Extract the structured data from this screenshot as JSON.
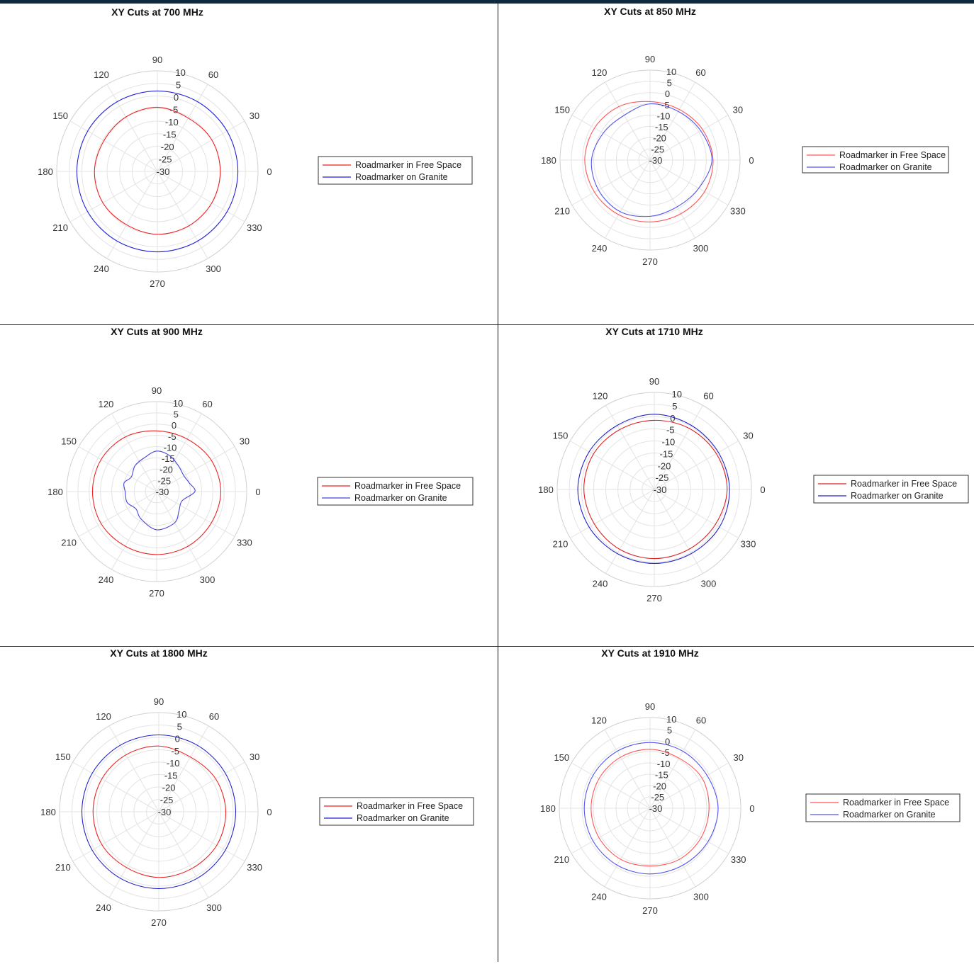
{
  "colors": {
    "free_space": "#ff3333",
    "granite": "#3333ee",
    "grid": "#e3e3e3",
    "axis_text": "#333333"
  },
  "chart_data": [
    {
      "type": "polar",
      "title": "XY Cuts at 700 MHz",
      "r_ticks": [
        "10",
        "5",
        "0",
        "-5",
        "-10",
        "-15",
        "-20",
        "-25",
        "-30"
      ],
      "r_range": [
        -30,
        10
      ],
      "theta_ticks": [
        "0",
        "30",
        "60",
        "90",
        "120",
        "150",
        "180",
        "210",
        "240",
        "270",
        "300",
        "330"
      ],
      "legend_placement": "right",
      "series": [
        {
          "name": "Roadmarker in Free Space",
          "color": "#ee2222",
          "theta": [
            0,
            30,
            60,
            90,
            120,
            150,
            180,
            210,
            240,
            270,
            300,
            330
          ],
          "r": [
            -5,
            -5,
            -5.5,
            -4.5,
            -5,
            -5.5,
            -5,
            -5,
            -5.5,
            -5,
            -5,
            -5
          ]
        },
        {
          "name": "Roadmarker on Granite",
          "color": "#2222dd",
          "theta": [
            0,
            30,
            60,
            90,
            120,
            150,
            180,
            210,
            240,
            270,
            300,
            330
          ],
          "r": [
            2,
            2,
            2,
            2,
            2,
            2,
            2,
            2,
            2,
            2,
            2,
            2
          ]
        }
      ]
    },
    {
      "type": "polar",
      "title": "XY Cuts at 850 MHz",
      "r_ticks": [
        "10",
        "5",
        "0",
        "-5",
        "-10",
        "-15",
        "-20",
        "-25",
        "-30"
      ],
      "r_range": [
        -30,
        10
      ],
      "theta_ticks": [
        "0",
        "30",
        "60",
        "90",
        "120",
        "150",
        "180",
        "210",
        "240",
        "270",
        "300",
        "330"
      ],
      "legend_placement": "right",
      "series": [
        {
          "name": "Roadmarker in Free Space",
          "color": "#ff5555",
          "theta": [
            0,
            30,
            60,
            90,
            120,
            150,
            180,
            210,
            240,
            270,
            300,
            330
          ],
          "r": [
            -2,
            -3,
            -4,
            -4,
            -2.5,
            -1.5,
            -1,
            -1.5,
            -2,
            -2.5,
            -2.5,
            -2
          ]
        },
        {
          "name": "Roadmarker on Granite",
          "color": "#5555ee",
          "theta": [
            0,
            30,
            60,
            90,
            120,
            150,
            180,
            210,
            240,
            270,
            300,
            330
          ],
          "r": [
            -2.5,
            -4,
            -5,
            -5,
            -7,
            -6,
            -4,
            -3.5,
            -3.5,
            -5,
            -6,
            -5
          ]
        }
      ]
    },
    {
      "type": "polar",
      "title": "XY Cuts at 900 MHz",
      "r_ticks": [
        "10",
        "5",
        "0",
        "-5",
        "-10",
        "-15",
        "-20",
        "-25",
        "-30"
      ],
      "r_range": [
        -30,
        10
      ],
      "theta_ticks": [
        "0",
        "30",
        "60",
        "90",
        "120",
        "150",
        "180",
        "210",
        "240",
        "270",
        "300",
        "330"
      ],
      "legend_placement": "right",
      "series": [
        {
          "name": "Roadmarker in Free Space",
          "color": "#ee2222",
          "theta": [
            0,
            30,
            60,
            90,
            120,
            150,
            180,
            210,
            240,
            270,
            300,
            330
          ],
          "r": [
            -1.5,
            -2,
            -3,
            -3,
            -2,
            -1.5,
            -1.5,
            -1.5,
            -2,
            -2,
            -2,
            -2
          ]
        },
        {
          "name": "Roadmarker on Granite",
          "color": "#4444dd",
          "theta": [
            0,
            15,
            30,
            50,
            70,
            90,
            110,
            130,
            150,
            165,
            180,
            200,
            220,
            240,
            270,
            300,
            320,
            340
          ],
          "r": [
            -13,
            -15,
            -16,
            -15,
            -13,
            -12,
            -14,
            -15,
            -17,
            -15,
            -16,
            -16,
            -18,
            -16,
            -13,
            -14,
            -17,
            -18
          ]
        }
      ]
    },
    {
      "type": "polar",
      "title": "XY Cuts at 1710 MHz",
      "r_ticks": [
        "10",
        "5",
        "0",
        "-5",
        "-10",
        "-15",
        "-20",
        "-25",
        "-30"
      ],
      "r_range": [
        -30,
        10
      ],
      "theta_ticks": [
        "0",
        "30",
        "60",
        "90",
        "120",
        "150",
        "180",
        "210",
        "240",
        "270",
        "300",
        "330"
      ],
      "legend_placement": "right",
      "series": [
        {
          "name": "Roadmarker in Free Space",
          "color": "#dd2222",
          "theta": [
            0,
            30,
            60,
            90,
            120,
            150,
            180,
            210,
            240,
            270,
            300,
            330
          ],
          "r": [
            0,
            -0.5,
            -1,
            -1.5,
            -1.5,
            -1,
            -1,
            -1.5,
            -1.5,
            -1.5,
            -1.5,
            -1
          ]
        },
        {
          "name": "Roadmarker on Granite",
          "color": "#2222cc",
          "theta": [
            0,
            30,
            60,
            90,
            120,
            150,
            180,
            210,
            240,
            270,
            300,
            330
          ],
          "r": [
            1,
            0.5,
            0.5,
            1,
            0.5,
            1,
            1.5,
            1,
            0.5,
            0.5,
            0.5,
            1
          ]
        }
      ]
    },
    {
      "type": "polar",
      "title": "XY Cuts at 1800 MHz",
      "r_ticks": [
        "10",
        "5",
        "0",
        "-5",
        "-10",
        "-15",
        "-20",
        "-25",
        "-30"
      ],
      "r_range": [
        -30,
        10
      ],
      "theta_ticks": [
        "0",
        "30",
        "60",
        "90",
        "120",
        "150",
        "180",
        "210",
        "240",
        "270",
        "300",
        "330"
      ],
      "legend_placement": "right",
      "series": [
        {
          "name": "Roadmarker in Free Space",
          "color": "#ee2222",
          "theta": [
            0,
            30,
            60,
            90,
            120,
            150,
            180,
            210,
            240,
            270,
            300,
            330
          ],
          "r": [
            -3,
            -3.5,
            -4.5,
            -3.5,
            -3.5,
            -3.5,
            -3.5,
            -3.5,
            -4,
            -3.5,
            -3.5,
            -3
          ]
        },
        {
          "name": "Roadmarker on Granite",
          "color": "#2222cc",
          "theta": [
            0,
            30,
            60,
            90,
            120,
            150,
            180,
            210,
            240,
            270,
            300,
            330
          ],
          "r": [
            1,
            1,
            1,
            1,
            1,
            1,
            1,
            1,
            1,
            1,
            1,
            1
          ]
        }
      ]
    },
    {
      "type": "polar",
      "title": "XY Cuts at 1910 MHz",
      "r_ticks": [
        "10",
        "5",
        "0",
        "-5",
        "-10",
        "-15",
        "-20",
        "-25",
        "-30"
      ],
      "r_range": [
        -30,
        10
      ],
      "theta_ticks": [
        "0",
        "30",
        "60",
        "90",
        "120",
        "150",
        "180",
        "210",
        "240",
        "270",
        "300",
        "330"
      ],
      "legend_placement": "right",
      "series": [
        {
          "name": "Roadmarker in Free Space",
          "color": "#ff5555",
          "theta": [
            0,
            30,
            60,
            90,
            120,
            150,
            180,
            210,
            240,
            270,
            300,
            330
          ],
          "r": [
            -4,
            -3.5,
            -4.5,
            -4,
            -4,
            -4,
            -4,
            -4,
            -4,
            -4.5,
            -4,
            -4
          ]
        },
        {
          "name": "Roadmarker on Granite",
          "color": "#5555ee",
          "theta": [
            0,
            30,
            60,
            90,
            120,
            150,
            180,
            210,
            240,
            270,
            300,
            330
          ],
          "r": [
            0,
            -1,
            -1,
            -1,
            -1,
            -1,
            -1,
            -1,
            -1,
            -1,
            -1,
            -0.5
          ]
        }
      ]
    }
  ]
}
